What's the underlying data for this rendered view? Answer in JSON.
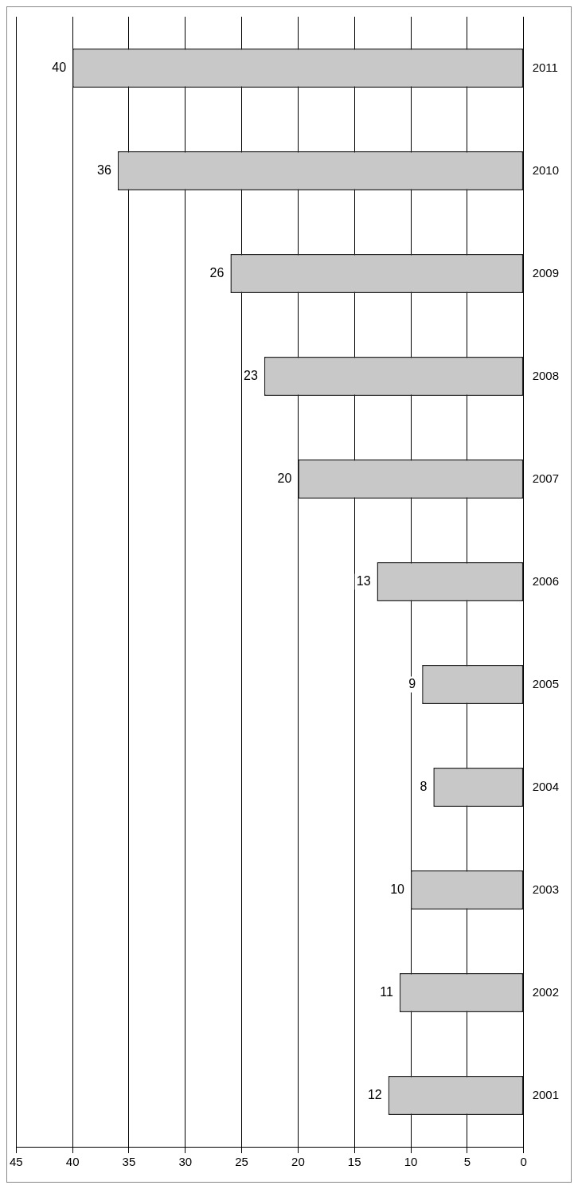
{
  "chart_data": {
    "type": "bar",
    "orientation": "horizontal",
    "categories": [
      "2011",
      "2010",
      "2009",
      "2008",
      "2007",
      "2006",
      "2005",
      "2004",
      "2003",
      "2002",
      "2001"
    ],
    "values": [
      40,
      36,
      26,
      23,
      20,
      13,
      9,
      8,
      10,
      11,
      12
    ],
    "color": "#c8c8c8",
    "xlim": [
      45,
      0
    ],
    "xticks": [
      45,
      40,
      35,
      30,
      25,
      20,
      15,
      10,
      5,
      0
    ],
    "grid": "x",
    "legend": false,
    "data_labels": true
  }
}
